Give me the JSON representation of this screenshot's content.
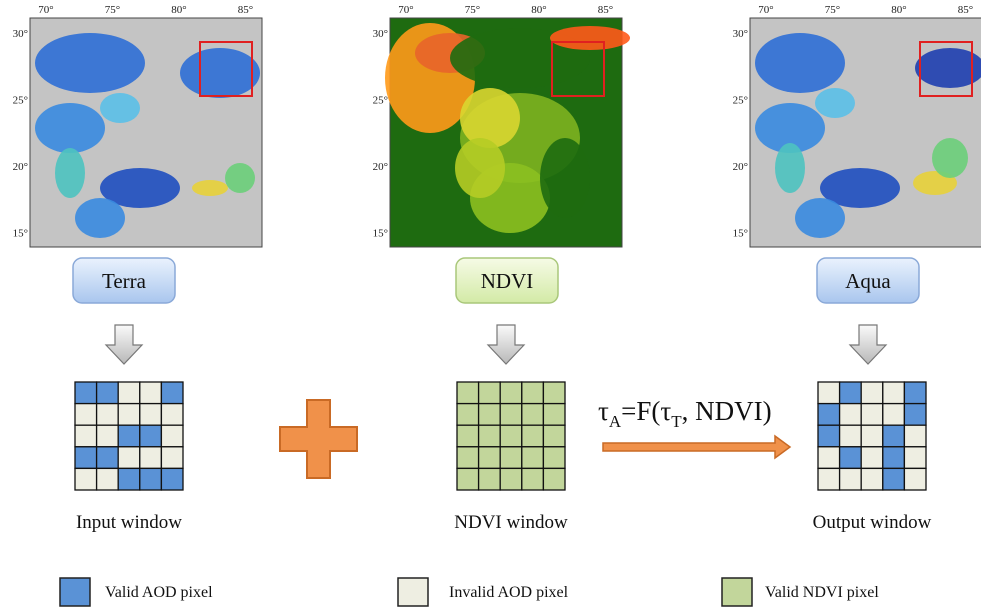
{
  "panels": [
    {
      "label": "Terra",
      "xticks": [
        "70°",
        "75°",
        "80°",
        "85°"
      ],
      "yticks": [
        "30°",
        "25°",
        "20°",
        "15°"
      ]
    },
    {
      "label": "NDVI",
      "xticks": [
        "70°",
        "75°",
        "80°",
        "85°"
      ],
      "yticks": [
        "30°",
        "25°",
        "20°",
        "15°"
      ]
    },
    {
      "label": "Aqua",
      "xticks": [
        "70°",
        "75°",
        "80°",
        "85°"
      ],
      "yticks": [
        "30°",
        "25°",
        "20°",
        "15°"
      ]
    }
  ],
  "windows": [
    "Input window",
    "NDVI window",
    "Output window"
  ],
  "formula": [
    "τ",
    "A",
    "=F(τ",
    "T",
    ", NDVI)"
  ],
  "legend": [
    "Valid AOD pixel",
    "Invalid AOD pixel",
    "Valid NDVI pixel"
  ]
}
